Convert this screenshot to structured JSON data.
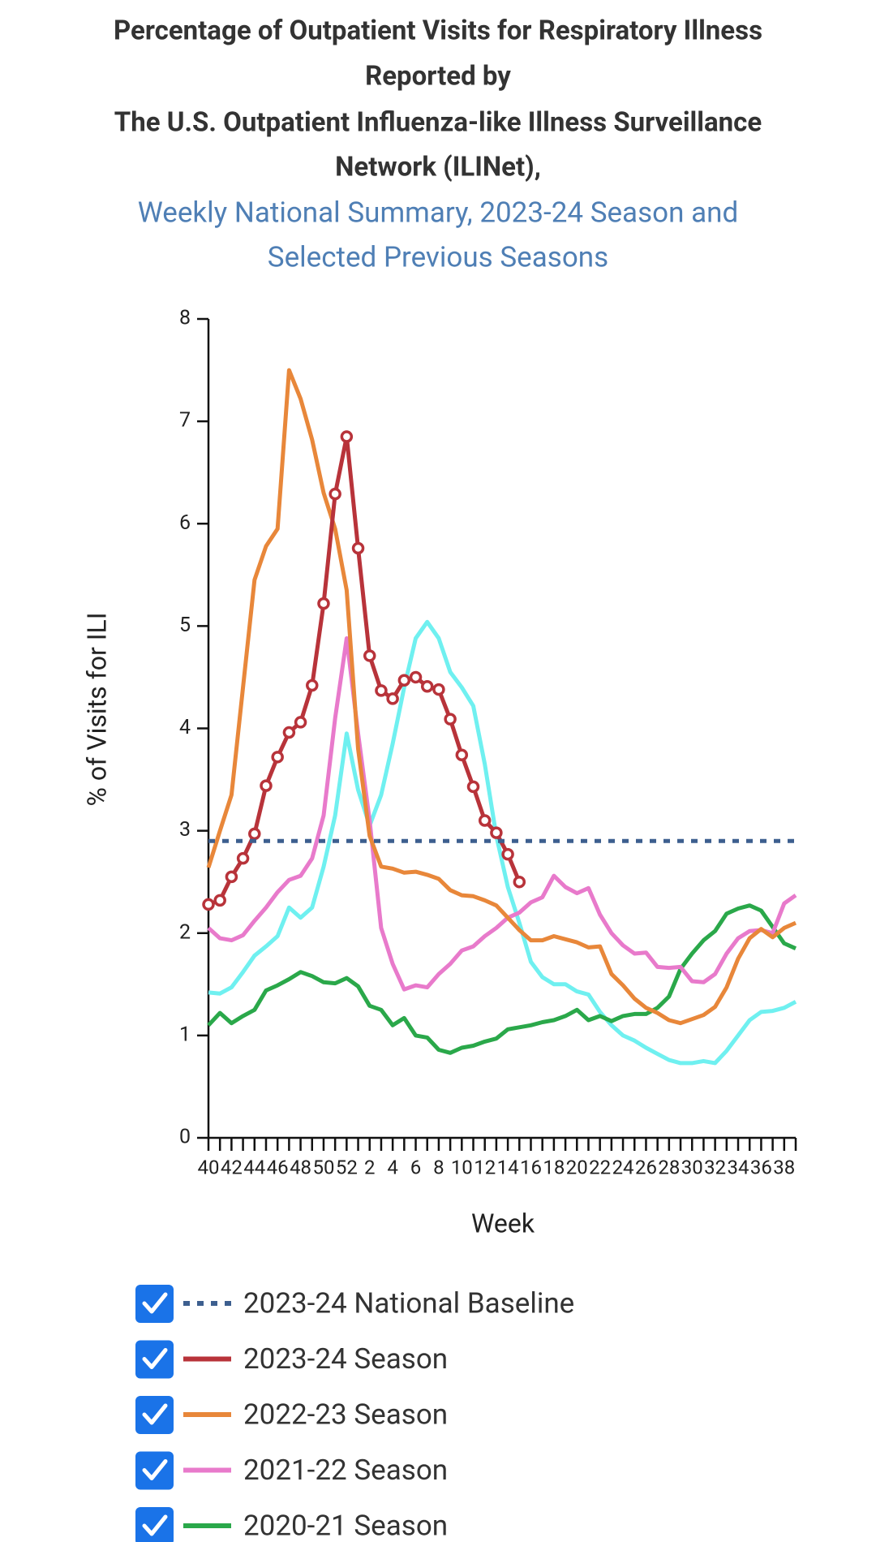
{
  "chart_data": {
    "type": "line",
    "title": [
      "Percentage of Outpatient Visits for Respiratory Illness",
      "Reported by",
      "The U.S. Outpatient Influenza-like Illness Surveillance",
      "Network (ILINet),"
    ],
    "subtitle": [
      "Weekly National Summary, 2023-24 Season and",
      "Selected Previous Seasons"
    ],
    "y_label": "% of Visits for ILI",
    "x_label": "Week",
    "categories": [
      40,
      null,
      42,
      null,
      44,
      null,
      46,
      null,
      48,
      null,
      50,
      null,
      52,
      null,
      2,
      null,
      4,
      null,
      6,
      null,
      8,
      null,
      10,
      null,
      12,
      null,
      14,
      null,
      16,
      null,
      18,
      null,
      20,
      null,
      22,
      null,
      24,
      null,
      26,
      null,
      28,
      null,
      30,
      null,
      32,
      null,
      34,
      null,
      36,
      null,
      38,
      null
    ],
    "ylim": [
      0,
      8
    ],
    "yticks": [
      0,
      1,
      2,
      3,
      4,
      5,
      6,
      7,
      8
    ],
    "series": [
      {
        "color": "#6ff0f0",
        "values": [
          1.42,
          1.41,
          1.47,
          1.62,
          1.78,
          1.87,
          1.97,
          2.25,
          2.15,
          2.25,
          2.65,
          3.15,
          3.95,
          3.4,
          3.05,
          3.35,
          3.85,
          4.4,
          4.88,
          5.04,
          4.88,
          4.55,
          4.4,
          4.22,
          3.65,
          2.95,
          2.45,
          2.1,
          1.72,
          1.57,
          1.5,
          1.5,
          1.43,
          1.4,
          1.23,
          1.1,
          1.0,
          0.95,
          0.88,
          0.82,
          0.76,
          0.73,
          0.73,
          0.75,
          0.73,
          0.85,
          1.0,
          1.15,
          1.23,
          1.24,
          1.27,
          1.33
        ]
      },
      {
        "name": "2020-21 Season",
        "color": "#2aa84a",
        "values": [
          1.1,
          1.22,
          1.12,
          1.19,
          1.25,
          1.44,
          1.49,
          1.55,
          1.62,
          1.58,
          1.52,
          1.51,
          1.56,
          1.48,
          1.29,
          1.25,
          1.1,
          1.17,
          1.0,
          0.98,
          0.86,
          0.83,
          0.88,
          0.9,
          0.94,
          0.97,
          1.06,
          1.08,
          1.1,
          1.13,
          1.15,
          1.19,
          1.25,
          1.15,
          1.19,
          1.14,
          1.19,
          1.21,
          1.21,
          1.27,
          1.38,
          1.65,
          1.8,
          1.93,
          2.02,
          2.19,
          2.24,
          2.27,
          2.22,
          2.06,
          1.9,
          1.85
        ]
      },
      {
        "name": "2021-22 Season",
        "color": "#e87acb",
        "values": [
          2.05,
          1.95,
          1.93,
          1.98,
          2.12,
          2.25,
          2.4,
          2.52,
          2.56,
          2.73,
          3.15,
          4.1,
          4.88,
          3.95,
          3.1,
          2.05,
          1.7,
          1.45,
          1.49,
          1.47,
          1.6,
          1.7,
          1.83,
          1.87,
          1.97,
          2.05,
          2.15,
          2.2,
          2.3,
          2.35,
          2.56,
          2.45,
          2.39,
          2.44,
          2.18,
          2.0,
          1.88,
          1.8,
          1.81,
          1.67,
          1.66,
          1.67,
          1.53,
          1.52,
          1.6,
          1.8,
          1.95,
          2.02,
          2.03,
          2.0,
          2.29,
          2.37
        ]
      },
      {
        "name": "2022-23 Season",
        "color": "#e8873a",
        "values": [
          2.64,
          3.0,
          3.35,
          4.4,
          5.45,
          5.78,
          5.95,
          7.5,
          7.22,
          6.82,
          6.3,
          5.95,
          5.35,
          3.8,
          2.95,
          2.65,
          2.63,
          2.59,
          2.6,
          2.57,
          2.53,
          2.42,
          2.37,
          2.36,
          2.32,
          2.27,
          2.15,
          2.03,
          1.93,
          1.93,
          1.97,
          1.94,
          1.91,
          1.86,
          1.87,
          1.6,
          1.49,
          1.36,
          1.27,
          1.22,
          1.15,
          1.12,
          1.16,
          1.2,
          1.28,
          1.47,
          1.75,
          1.95,
          2.04,
          1.96,
          2.05,
          2.1
        ]
      },
      {
        "name": "2023-24 Season",
        "color": "#b8333a",
        "markers": true,
        "values": [
          2.28,
          2.32,
          2.55,
          2.73,
          2.97,
          3.44,
          3.72,
          3.96,
          4.06,
          4.42,
          5.22,
          6.29,
          6.85,
          5.76,
          4.71,
          4.37,
          4.29,
          4.47,
          4.5,
          4.41,
          4.38,
          4.09,
          3.74,
          3.43,
          3.1,
          2.98,
          2.77,
          2.5,
          null,
          null,
          null,
          null,
          null,
          null,
          null,
          null,
          null,
          null,
          null,
          null,
          null,
          null,
          null,
          null,
          null,
          null,
          null,
          null,
          null,
          null,
          null,
          null
        ]
      },
      {
        "name": "2023-24 National Baseline",
        "color": "#3d5f8f",
        "dashed": true,
        "values": [
          2.9,
          2.9,
          2.9,
          2.9,
          2.9,
          2.9,
          2.9,
          2.9,
          2.9,
          2.9,
          2.9,
          2.9,
          2.9,
          2.9,
          2.9,
          2.9,
          2.9,
          2.9,
          2.9,
          2.9,
          2.9,
          2.9,
          2.9,
          2.9,
          2.9,
          2.9,
          2.9,
          2.9,
          2.9,
          2.9,
          2.9,
          2.9,
          2.9,
          2.9,
          2.9,
          2.9,
          2.9,
          2.9,
          2.9,
          2.9,
          2.9,
          2.9,
          2.9,
          2.9,
          2.9,
          2.9,
          2.9,
          2.9,
          2.9,
          2.9,
          2.9,
          2.9
        ]
      }
    ],
    "legend_order": [
      5,
      4,
      3,
      2,
      1
    ]
  }
}
